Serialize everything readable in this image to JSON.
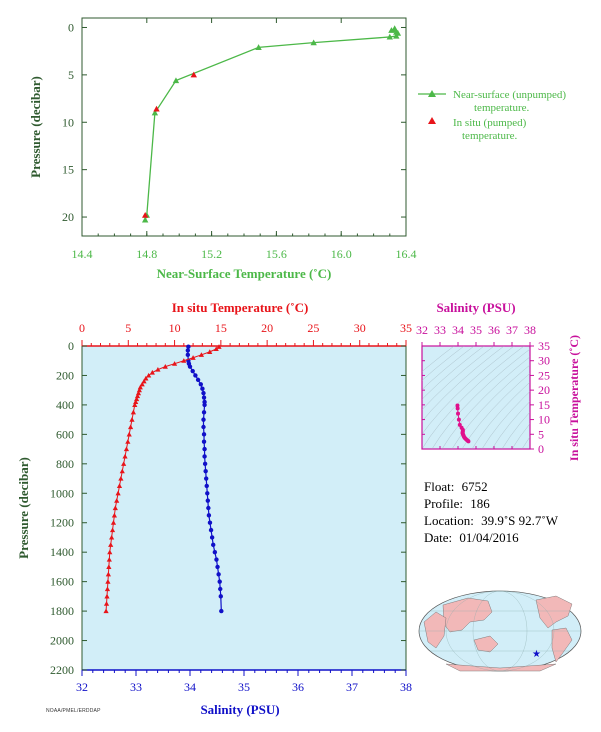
{
  "chart_data": [
    {
      "type": "line",
      "title": "",
      "xlabel": "Near-Surface Temperature (˚C)",
      "ylabel": "Pressure (decibar)",
      "xlim": [
        14.4,
        16.4
      ],
      "ylim": [
        22,
        -1
      ],
      "xticks": [
        "14.4",
        "14.8",
        "15.2",
        "15.6",
        "16.0",
        "16.4"
      ],
      "yticks": [
        "0",
        "5",
        "10",
        "15",
        "20"
      ],
      "legend_position": "right",
      "series": [
        {
          "name": "Near-surface (unpumped) temperature.",
          "color": "#4cb848",
          "marker": "triangle",
          "x": [
            14.79,
            14.8,
            14.85,
            14.98,
            15.49,
            15.83,
            16.3,
            16.31,
            16.33,
            16.34,
            16.34,
            16.35
          ],
          "y": [
            20.3,
            19.8,
            9.0,
            5.6,
            2.1,
            1.6,
            1.0,
            0.3,
            0.1,
            0.5,
            0.9,
            0.6
          ]
        },
        {
          "name": "In situ (pumped) temperature.",
          "color": "#e8141a",
          "marker": "triangle",
          "x": [
            14.79,
            14.86,
            15.09
          ],
          "y": [
            19.8,
            8.6,
            5.0
          ]
        }
      ]
    },
    {
      "type": "scatter",
      "title": "",
      "ylabel": "Pressure (decibar)",
      "ylim": [
        2200,
        0
      ],
      "yticks": [
        "0",
        "200",
        "400",
        "600",
        "800",
        "1000",
        "1200",
        "1400",
        "1600",
        "1800",
        "2000",
        "2200"
      ],
      "x_top": {
        "label": "In situ Temperature (˚C)",
        "range": [
          0,
          35
        ],
        "ticks": [
          "0",
          "5",
          "10",
          "15",
          "20",
          "25",
          "30",
          "35"
        ],
        "color": "#e8141a"
      },
      "x_bottom": {
        "label": "Salinity (PSU)",
        "range": [
          32,
          38
        ],
        "ticks": [
          "32",
          "33",
          "34",
          "35",
          "36",
          "37",
          "38"
        ],
        "color": "#1010c8"
      },
      "series": [
        {
          "name": "In situ Temperature",
          "color": "#e8141a",
          "marker": "triangle",
          "x": [
            14.8,
            14.5,
            13.8,
            12.9,
            12.0,
            11.0,
            10.0,
            9.0,
            8.2,
            7.6,
            7.2,
            6.9,
            6.7,
            6.5,
            6.3,
            6.2,
            6.1,
            6.0,
            5.9,
            5.8,
            5.7,
            5.55,
            5.4,
            5.25,
            5.1,
            4.95,
            4.8,
            4.65,
            4.5,
            4.35,
            4.2,
            4.05,
            3.9,
            3.75,
            3.6,
            3.5,
            3.4,
            3.3,
            3.2,
            3.1,
            3.0,
            2.95,
            2.9,
            2.85,
            2.8,
            2.75,
            2.7,
            2.65,
            2.6
          ],
          "y": [
            5,
            20,
            40,
            60,
            80,
            100,
            120,
            140,
            160,
            180,
            200,
            220,
            240,
            260,
            280,
            300,
            320,
            340,
            360,
            380,
            400,
            450,
            500,
            550,
            600,
            650,
            700,
            750,
            800,
            850,
            900,
            950,
            1000,
            1050,
            1100,
            1150,
            1200,
            1250,
            1300,
            1350,
            1400,
            1450,
            1500,
            1550,
            1600,
            1650,
            1700,
            1750,
            1800
          ]
        },
        {
          "name": "Salinity",
          "color": "#1010c8",
          "marker": "circle",
          "x": [
            33.97,
            33.96,
            33.96,
            33.97,
            33.98,
            34.0,
            34.05,
            34.1,
            34.15,
            34.2,
            34.23,
            34.25,
            34.26,
            34.27,
            34.27,
            34.26,
            34.25,
            34.25,
            34.26,
            34.26,
            34.27,
            34.27,
            34.28,
            34.29,
            34.3,
            34.31,
            34.32,
            34.33,
            34.34,
            34.35,
            34.37,
            34.39,
            34.41,
            34.43,
            34.46,
            34.49,
            34.51,
            34.53,
            34.55,
            34.56,
            34.57,
            34.58
          ],
          "y": [
            5,
            30,
            60,
            100,
            120,
            140,
            170,
            200,
            230,
            260,
            290,
            320,
            350,
            380,
            400,
            450,
            500,
            550,
            600,
            650,
            700,
            750,
            800,
            850,
            900,
            950,
            1000,
            1050,
            1100,
            1150,
            1200,
            1250,
            1300,
            1350,
            1400,
            1450,
            1500,
            1550,
            1600,
            1650,
            1700,
            1800
          ]
        }
      ]
    },
    {
      "type": "scatter",
      "title": "Salinity (PSU)",
      "xlabel": "",
      "ylabel": "In situ Temperature (˚C)",
      "xlim": [
        32,
        38
      ],
      "ylim": [
        0,
        35
      ],
      "xticks": [
        "32",
        "33",
        "34",
        "35",
        "36",
        "37",
        "38"
      ],
      "yticks": [
        "0",
        "5",
        "10",
        "15",
        "20",
        "25",
        "30",
        "35"
      ],
      "series": [
        {
          "name": "T-S profile",
          "color": "#e0108c",
          "x": [
            33.97,
            33.98,
            34.0,
            34.05,
            34.1,
            34.2,
            34.27,
            34.27,
            34.26,
            34.25,
            34.27,
            34.29,
            34.31,
            34.33,
            34.36,
            34.4,
            34.45,
            34.5,
            34.55,
            34.58
          ],
          "y": [
            14.8,
            13.8,
            12.0,
            10.0,
            8.2,
            7.2,
            6.5,
            6.0,
            5.7,
            5.4,
            5.1,
            4.8,
            4.5,
            4.2,
            3.9,
            3.6,
            3.3,
            3.0,
            2.8,
            2.6
          ]
        }
      ]
    }
  ],
  "float_info": {
    "float_label": "Float:",
    "float_value": "6752",
    "profile_label": "Profile:",
    "profile_value": "186",
    "location_label": "Location:",
    "location_value": "39.9˚S  92.7˚W",
    "date_label": "Date:",
    "date_value": "01/04/2016"
  },
  "footer_text": "NOAA/PMEL/ERDDAP",
  "colors": {
    "axis_green": "#2f5a2f",
    "surface_green": "#4cb848",
    "insitu_red": "#e8141a",
    "salinity_blue": "#1010c8",
    "ts_magenta": "#c8109c",
    "panel_bg": "#d2eef8",
    "land_pink": "#f2b8b8"
  }
}
